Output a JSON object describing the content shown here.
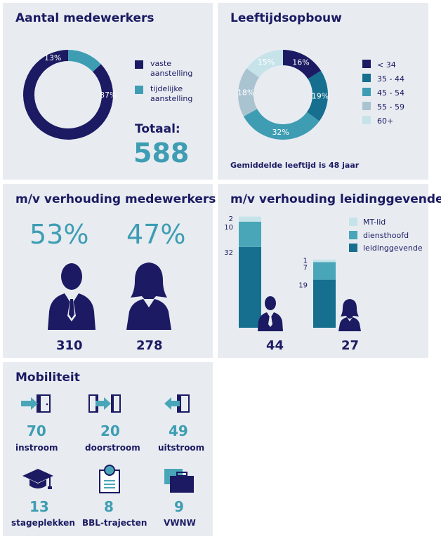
{
  "colors": {
    "navy": "#1b1a62",
    "teal_dark": "#166f8f",
    "teal": "#3e9db3",
    "teal_mid": "#49a6b8",
    "grey_blue": "#a9c3d1",
    "light_blue": "#c6e3ea",
    "panel_bg": "#e8ecf1"
  },
  "chart_data": [
    {
      "type": "pie",
      "title": "Aantal medewerkers",
      "categories": [
        "vaste aanstelling",
        "tijdelijke aanstelling"
      ],
      "values": [
        87,
        13
      ],
      "labels": [
        "87%",
        "13%"
      ],
      "total_label": "Totaal:",
      "total": "588"
    },
    {
      "type": "pie",
      "title": "Leeftijdsopbouw",
      "categories": [
        "< 34",
        "35 - 44",
        "45 - 54",
        "55 - 59",
        "60+"
      ],
      "values": [
        16,
        19,
        32,
        18,
        15
      ],
      "labels": [
        "16%",
        "19%",
        "32%",
        "18%",
        "15%"
      ],
      "note": "Gemiddelde leeftijd is 48 jaar"
    },
    {
      "type": "bar",
      "title": "m/v verhouding medewerkers",
      "categories": [
        "man",
        "vrouw"
      ],
      "percentages": [
        "53%",
        "47%"
      ],
      "values": [
        310,
        278
      ],
      "value_labels": [
        "310",
        "278"
      ]
    },
    {
      "type": "bar",
      "title": "m/v verhouding leidinggevenden",
      "stacked": true,
      "categories": [
        "man",
        "vrouw"
      ],
      "legend": [
        "MT-lid",
        "diensthoofd",
        "leidinggevende"
      ],
      "series": [
        {
          "name": "leidinggevende",
          "values": [
            32,
            19
          ],
          "labels": [
            "32",
            "19"
          ]
        },
        {
          "name": "diensthoofd",
          "values": [
            10,
            7
          ],
          "labels": [
            "10",
            "7"
          ]
        },
        {
          "name": "MT-lid",
          "values": [
            2,
            1
          ],
          "labels": [
            "2",
            "1"
          ]
        }
      ],
      "totals": [
        "44",
        "27"
      ]
    },
    {
      "type": "table",
      "title": "Mobiliteit",
      "items": [
        {
          "icon": "instroom-door-icon",
          "value": "70",
          "label": "instroom"
        },
        {
          "icon": "doorstroom-door-icon",
          "value": "20",
          "label": "doorstroom"
        },
        {
          "icon": "uitstroom-door-icon",
          "value": "49",
          "label": "uitstroom"
        },
        {
          "icon": "graduation-cap-icon",
          "value": "13",
          "label": "stageplekken"
        },
        {
          "icon": "certificate-icon",
          "value": "8",
          "label": "BBL-trajecten"
        },
        {
          "icon": "briefcase-icon",
          "value": "9",
          "label": "VWNW"
        }
      ]
    }
  ]
}
